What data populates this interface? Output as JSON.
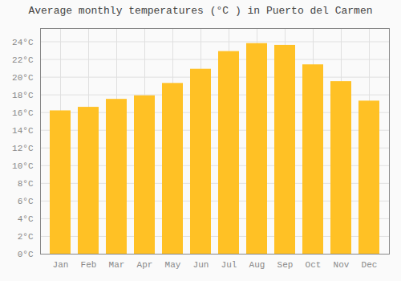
{
  "chart_data": {
    "type": "bar",
    "title": "Average monthly temperatures (°C ) in Puerto del Carmen",
    "categories": [
      "Jan",
      "Feb",
      "Mar",
      "Apr",
      "May",
      "Jun",
      "Jul",
      "Aug",
      "Sep",
      "Oct",
      "Nov",
      "Dec"
    ],
    "values": [
      16.2,
      16.6,
      17.5,
      17.9,
      19.3,
      20.9,
      22.9,
      23.8,
      23.6,
      21.4,
      19.5,
      17.3
    ],
    "color": "#FFC125",
    "ylim": [
      0,
      25.5
    ],
    "yticks": [
      {
        "value": 0,
        "label": "0°C"
      },
      {
        "value": 2,
        "label": "2°C"
      },
      {
        "value": 4,
        "label": "4°C"
      },
      {
        "value": 6,
        "label": "6°C"
      },
      {
        "value": 8,
        "label": "8°C"
      },
      {
        "value": 10,
        "label": "10°C"
      },
      {
        "value": 12,
        "label": "12°C"
      },
      {
        "value": 14,
        "label": "14°C"
      },
      {
        "value": 16,
        "label": "16°C"
      },
      {
        "value": 18,
        "label": "18°C"
      },
      {
        "value": 20,
        "label": "20°C"
      },
      {
        "value": 22,
        "label": "22°C"
      },
      {
        "value": 24,
        "label": "24°C"
      }
    ],
    "grid": true
  }
}
